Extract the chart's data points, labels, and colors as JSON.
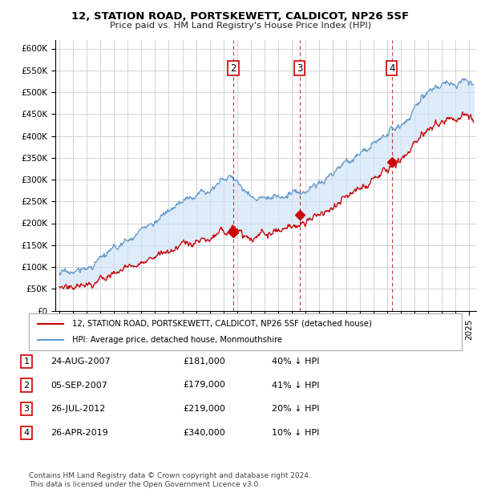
{
  "title": "12, STATION ROAD, PORTSKEWETT, CALDICOT, NP26 5SF",
  "subtitle": "Price paid vs. HM Land Registry's House Price Index (HPI)",
  "ylim": [
    0,
    620000
  ],
  "yticks": [
    0,
    50000,
    100000,
    150000,
    200000,
    250000,
    300000,
    350000,
    400000,
    450000,
    500000,
    550000,
    600000
  ],
  "ytick_labels": [
    "£0",
    "£50K",
    "£100K",
    "£150K",
    "£200K",
    "£250K",
    "£300K",
    "£350K",
    "£400K",
    "£450K",
    "£500K",
    "£550K",
    "£600K"
  ],
  "xlim_start": 1994.7,
  "xlim_end": 2025.5,
  "plot_bg_color": "#ffffff",
  "hpi_color": "#6699cc",
  "price_color": "#cc0000",
  "fill_color": "#d0e4f7",
  "legend_label_price": "12, STATION ROAD, PORTSKEWETT, CALDICOT, NP26 5SF (detached house)",
  "legend_label_hpi": "HPI: Average price, detached house, Monmouthshire",
  "transactions": [
    {
      "id": 1,
      "date_label": "24-AUG-2007",
      "x": 2007.65,
      "price": 181000,
      "pct": "40% ↓ HPI",
      "dashed": false
    },
    {
      "id": 2,
      "date_label": "05-SEP-2007",
      "x": 2007.72,
      "price": 179000,
      "pct": "41% ↓ HPI",
      "dashed": true
    },
    {
      "id": 3,
      "date_label": "26-JUL-2012",
      "x": 2012.57,
      "price": 219000,
      "pct": "20% ↓ HPI",
      "dashed": true
    },
    {
      "id": 4,
      "date_label": "26-APR-2019",
      "x": 2019.32,
      "price": 340000,
      "pct": "10% ↓ HPI",
      "dashed": true
    }
  ],
  "table_rows": [
    {
      "id": "1",
      "date": "24-AUG-2007",
      "price": "£181,000",
      "pct": "40% ↓ HPI"
    },
    {
      "id": "2",
      "date": "05-SEP-2007",
      "price": "£179,000",
      "pct": "41% ↓ HPI"
    },
    {
      "id": "3",
      "date": "26-JUL-2012",
      "price": "£219,000",
      "pct": "20% ↓ HPI"
    },
    {
      "id": "4",
      "date": "26-APR-2019",
      "price": "£340,000",
      "pct": "10% ↓ HPI"
    }
  ],
  "footer": "Contains HM Land Registry data © Crown copyright and database right 2024.\nThis data is licensed under the Open Government Licence v3.0."
}
